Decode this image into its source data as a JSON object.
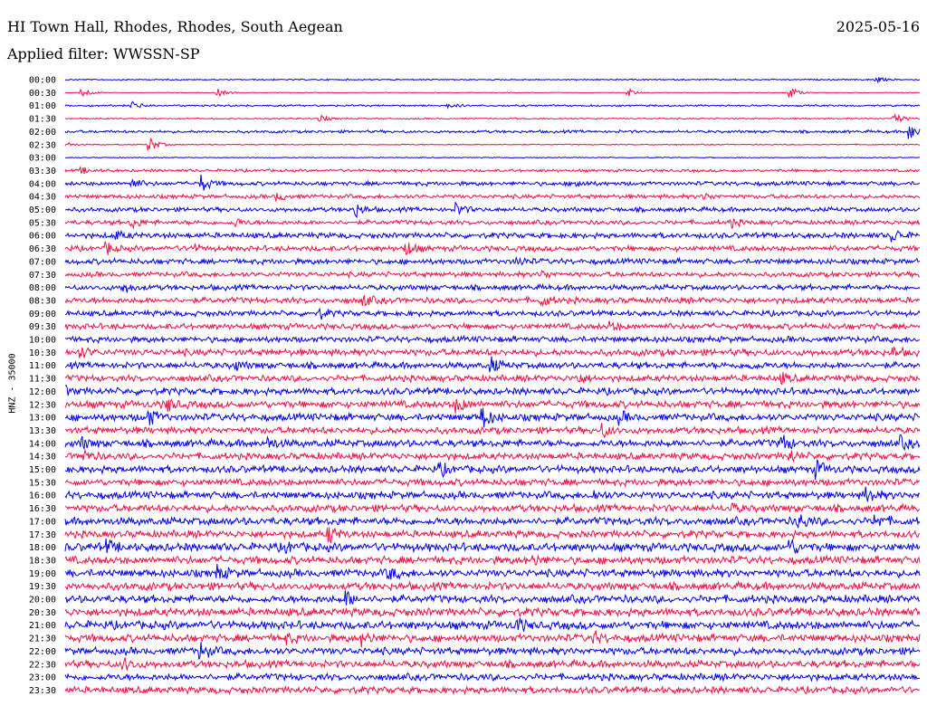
{
  "header": {
    "station": "HI Town Hall, Rhodes, Rhodes, South Aegean",
    "filter": "Applied filter: WWSSN-SP",
    "date": "2025-05-16"
  },
  "chart_data": {
    "type": "line",
    "title": "HI Town Hall, Rhodes, Rhodes, South Aegean",
    "ylabel": "HNZ - 35000",
    "colors": {
      "even": "#0000ee",
      "odd": "#ee1144"
    },
    "traces": [
      {
        "time": "00:00",
        "amp": 0.6,
        "events": [
          {
            "t": 0.95,
            "a": 3
          }
        ]
      },
      {
        "time": "00:30",
        "amp": 0.3,
        "events": [
          {
            "t": 0.02,
            "a": 6
          },
          {
            "t": 0.18,
            "a": 4
          },
          {
            "t": 0.66,
            "a": 4
          },
          {
            "t": 0.85,
            "a": 6
          }
        ]
      },
      {
        "time": "01:00",
        "amp": 0.8,
        "events": [
          {
            "t": 0.08,
            "a": 4
          },
          {
            "t": 0.45,
            "a": 2
          }
        ]
      },
      {
        "time": "01:30",
        "amp": 0.6,
        "events": [
          {
            "t": 0.3,
            "a": 3
          },
          {
            "t": 0.97,
            "a": 7
          }
        ]
      },
      {
        "time": "02:00",
        "amp": 1.2,
        "events": [
          {
            "t": 0.99,
            "a": 8
          }
        ]
      },
      {
        "time": "02:30",
        "amp": 0.5,
        "events": [
          {
            "t": 0.1,
            "a": 8
          },
          {
            "t": 0.0,
            "a": 3
          }
        ]
      },
      {
        "time": "03:00",
        "amp": 0.4,
        "events": []
      },
      {
        "time": "03:30",
        "amp": 1.2,
        "events": [
          {
            "t": 0.02,
            "a": 3
          }
        ]
      },
      {
        "time": "04:00",
        "amp": 1.8,
        "events": [
          {
            "t": 0.08,
            "a": 5
          },
          {
            "t": 0.16,
            "a": 9
          },
          {
            "t": 0.6,
            "a": 4
          }
        ]
      },
      {
        "time": "04:30",
        "amp": 1.8,
        "events": [
          {
            "t": 0.25,
            "a": 4
          },
          {
            "t": 0.75,
            "a": 3
          }
        ]
      },
      {
        "time": "05:00",
        "amp": 2.0,
        "events": [
          {
            "t": 0.34,
            "a": 7
          },
          {
            "t": 0.46,
            "a": 6
          }
        ]
      },
      {
        "time": "05:30",
        "amp": 2.0,
        "events": [
          {
            "t": 0.08,
            "a": 5
          },
          {
            "t": 0.2,
            "a": 4
          },
          {
            "t": 0.78,
            "a": 4
          }
        ]
      },
      {
        "time": "06:00",
        "amp": 2.4,
        "events": [
          {
            "t": 0.06,
            "a": 4
          },
          {
            "t": 0.97,
            "a": 6
          }
        ]
      },
      {
        "time": "06:30",
        "amp": 2.4,
        "events": [
          {
            "t": 0.05,
            "a": 5
          },
          {
            "t": 0.4,
            "a": 7
          },
          {
            "t": 0.15,
            "a": 4
          }
        ]
      },
      {
        "time": "07:00",
        "amp": 2.4,
        "events": [
          {
            "t": 0.53,
            "a": 4
          }
        ]
      },
      {
        "time": "07:30",
        "amp": 2.2,
        "events": [
          {
            "t": 0.56,
            "a": 4
          }
        ]
      },
      {
        "time": "08:00",
        "amp": 2.4,
        "events": [
          {
            "t": 0.07,
            "a": 5
          }
        ]
      },
      {
        "time": "08:30",
        "amp": 2.6,
        "events": [
          {
            "t": 0.35,
            "a": 5
          },
          {
            "t": 0.56,
            "a": 5
          }
        ]
      },
      {
        "time": "09:00",
        "amp": 2.4,
        "events": [
          {
            "t": 0.3,
            "a": 4
          }
        ]
      },
      {
        "time": "09:30",
        "amp": 2.6,
        "events": [
          {
            "t": 0.64,
            "a": 4
          }
        ]
      },
      {
        "time": "10:00",
        "amp": 2.6,
        "events": []
      },
      {
        "time": "10:30",
        "amp": 3.0,
        "events": [
          {
            "t": 0.02,
            "a": 5
          },
          {
            "t": 0.97,
            "a": 4
          }
        ]
      },
      {
        "time": "11:00",
        "amp": 2.8,
        "events": [
          {
            "t": 0.2,
            "a": 4
          },
          {
            "t": 0.5,
            "a": 7
          },
          {
            "t": 0.8,
            "a": 4
          }
        ]
      },
      {
        "time": "11:30",
        "amp": 2.8,
        "events": [
          {
            "t": 0.6,
            "a": 5
          },
          {
            "t": 0.84,
            "a": 4
          }
        ]
      },
      {
        "time": "12:00",
        "amp": 3.0,
        "events": [
          {
            "t": 0.0,
            "a": 4
          }
        ]
      },
      {
        "time": "12:30",
        "amp": 3.2,
        "events": [
          {
            "t": 0.12,
            "a": 7
          },
          {
            "t": 0.46,
            "a": 7
          }
        ]
      },
      {
        "time": "13:00",
        "amp": 3.2,
        "events": [
          {
            "t": 0.1,
            "a": 7
          },
          {
            "t": 0.49,
            "a": 10
          },
          {
            "t": 0.65,
            "a": 5
          }
        ]
      },
      {
        "time": "13:30",
        "amp": 3.0,
        "events": [
          {
            "t": 0.63,
            "a": 6
          }
        ]
      },
      {
        "time": "14:00",
        "amp": 3.2,
        "events": [
          {
            "t": 0.02,
            "a": 5
          },
          {
            "t": 0.24,
            "a": 5
          },
          {
            "t": 0.84,
            "a": 8
          },
          {
            "t": 0.98,
            "a": 5
          }
        ]
      },
      {
        "time": "14:30",
        "amp": 3.0,
        "events": [
          {
            "t": 0.02,
            "a": 7
          },
          {
            "t": 0.85,
            "a": 5
          }
        ]
      },
      {
        "time": "15:00",
        "amp": 3.2,
        "events": [
          {
            "t": 0.44,
            "a": 5
          },
          {
            "t": 0.88,
            "a": 8
          }
        ]
      },
      {
        "time": "15:30",
        "amp": 3.0,
        "events": []
      },
      {
        "time": "16:00",
        "amp": 3.2,
        "events": [
          {
            "t": 0.62,
            "a": 4
          },
          {
            "t": 0.94,
            "a": 7
          }
        ]
      },
      {
        "time": "16:30",
        "amp": 3.2,
        "events": [
          {
            "t": 0.78,
            "a": 4
          }
        ]
      },
      {
        "time": "17:00",
        "amp": 3.4,
        "events": [
          {
            "t": 0.86,
            "a": 7
          },
          {
            "t": 0.95,
            "a": 6
          }
        ]
      },
      {
        "time": "17:30",
        "amp": 3.2,
        "events": [
          {
            "t": 0.31,
            "a": 8
          }
        ]
      },
      {
        "time": "18:00",
        "amp": 3.6,
        "events": [
          {
            "t": 0.05,
            "a": 6
          },
          {
            "t": 0.85,
            "a": 7
          },
          {
            "t": 0.26,
            "a": 4
          }
        ]
      },
      {
        "time": "18:30",
        "amp": 3.4,
        "events": [
          {
            "t": 0.55,
            "a": 4
          }
        ]
      },
      {
        "time": "19:00",
        "amp": 3.4,
        "events": [
          {
            "t": 0.18,
            "a": 6
          },
          {
            "t": 0.38,
            "a": 6
          }
        ]
      },
      {
        "time": "19:30",
        "amp": 3.4,
        "events": []
      },
      {
        "time": "20:00",
        "amp": 3.4,
        "events": [
          {
            "t": 0.33,
            "a": 7
          }
        ]
      },
      {
        "time": "20:30",
        "amp": 3.6,
        "events": []
      },
      {
        "time": "21:00",
        "amp": 3.6,
        "events": [
          {
            "t": 0.53,
            "a": 6
          }
        ]
      },
      {
        "time": "21:30",
        "amp": 3.4,
        "events": [
          {
            "t": 0.35,
            "a": 6
          },
          {
            "t": 0.62,
            "a": 5
          },
          {
            "t": 0.26,
            "a": 4
          }
        ]
      },
      {
        "time": "22:00",
        "amp": 3.2,
        "events": [
          {
            "t": 0.16,
            "a": 8
          }
        ]
      },
      {
        "time": "22:30",
        "amp": 3.2,
        "events": [
          {
            "t": 0.07,
            "a": 6
          }
        ]
      },
      {
        "time": "23:00",
        "amp": 3.0,
        "events": []
      },
      {
        "time": "23:30",
        "amp": 3.0,
        "events": []
      }
    ]
  }
}
